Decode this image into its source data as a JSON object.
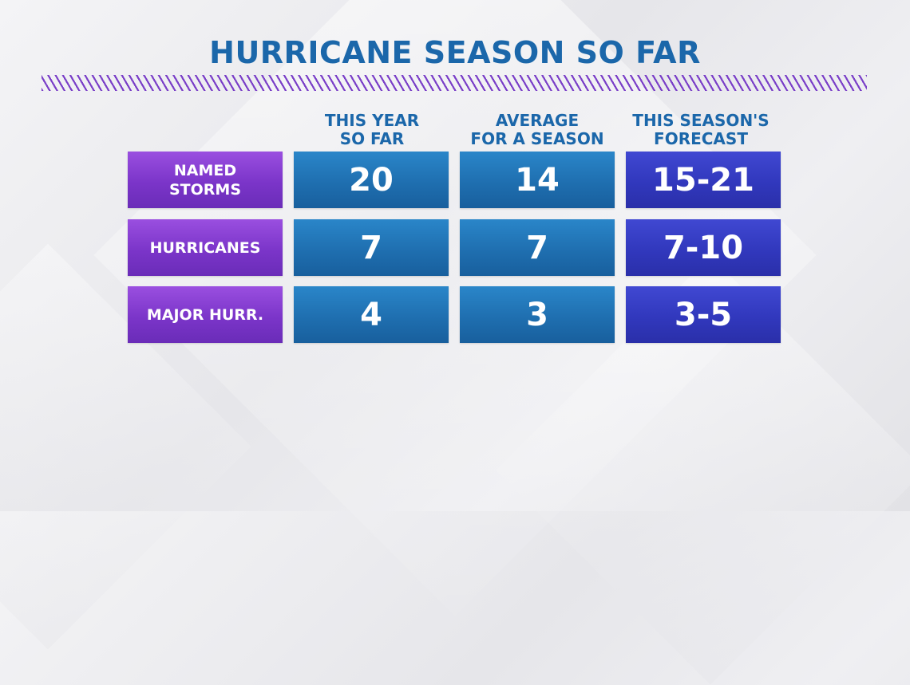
{
  "title": "HURRICANE SEASON SO FAR",
  "columns": [
    {
      "line1": "THIS YEAR",
      "line2": "SO FAR"
    },
    {
      "line1": "AVERAGE",
      "line2": "FOR A SEASON"
    },
    {
      "line1": "THIS SEASON'S",
      "line2": "FORECAST"
    }
  ],
  "rows": [
    {
      "label_line1": "NAMED",
      "label_line2": "STORMS",
      "values": [
        "20",
        "14",
        "15-21"
      ]
    },
    {
      "label_line1": "HURRICANES",
      "label_line2": "",
      "values": [
        "7",
        "7",
        "7-10"
      ]
    },
    {
      "label_line1": "MAJOR HURR.",
      "label_line2": "",
      "values": [
        "4",
        "3",
        "3-5"
      ]
    }
  ],
  "chart_data": {
    "type": "table",
    "title": "HURRICANE SEASON SO FAR",
    "columns": [
      "THIS YEAR SO FAR",
      "AVERAGE FOR A SEASON",
      "THIS SEASON'S FORECAST"
    ],
    "rows": [
      {
        "label": "NAMED STORMS",
        "this_year_so_far": 20,
        "average_for_a_season": 14,
        "this_seasons_forecast": "15-21"
      },
      {
        "label": "HURRICANES",
        "this_year_so_far": 7,
        "average_for_a_season": 7,
        "this_seasons_forecast": "7-10"
      },
      {
        "label": "MAJOR HURR.",
        "this_year_so_far": 4,
        "average_for_a_season": 3,
        "this_seasons_forecast": "3-5"
      }
    ]
  },
  "colors": {
    "title": "#1b67aa",
    "hatch": "#7a3fc8",
    "row_label": "#7b35c9",
    "value_cell": "#1f6fb0",
    "forecast_cell": "#3138bd"
  }
}
